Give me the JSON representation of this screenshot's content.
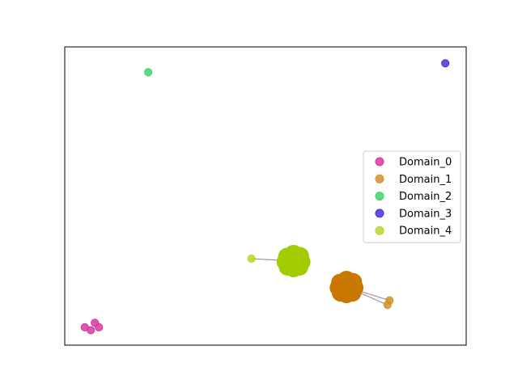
{
  "chart_data": {
    "type": "scatter",
    "title": "",
    "xlabel": "",
    "ylabel": "",
    "xlim": [
      0,
      100
    ],
    "ylim": [
      0,
      100
    ],
    "axes_ticks": false,
    "grid": false,
    "legend_position": "center-right",
    "series": [
      {
        "name": "Domain_0",
        "color": "#d63ba0",
        "points": [
          [
            5,
            6
          ],
          [
            6.5,
            5
          ],
          [
            7.5,
            7.5
          ],
          [
            8.5,
            6
          ]
        ]
      },
      {
        "name": "Domain_1",
        "color": "#d4922e",
        "points": [
          [
            80.4,
            13.5
          ],
          [
            80.9,
            15
          ]
        ]
      },
      {
        "name": "Domain_2",
        "color": "#3dd56f",
        "points": [
          [
            20.8,
            91.5
          ]
        ]
      },
      {
        "name": "Domain_3",
        "color": "#4c2fd6",
        "points": [
          [
            94.8,
            94.5
          ]
        ]
      },
      {
        "name": "Domain_4",
        "color": "#b8d62a",
        "points": [
          [
            46.5,
            29
          ]
        ]
      }
    ],
    "clusters": [
      {
        "color": "#c87800",
        "center": [
          70.2,
          19.5
        ],
        "radius": 3.6,
        "links_to_series": "Domain_1"
      },
      {
        "color": "#a0cc00",
        "center": [
          57,
          28.2
        ],
        "radius": 3.6,
        "links_to_series": "Domain_4"
      }
    ]
  }
}
